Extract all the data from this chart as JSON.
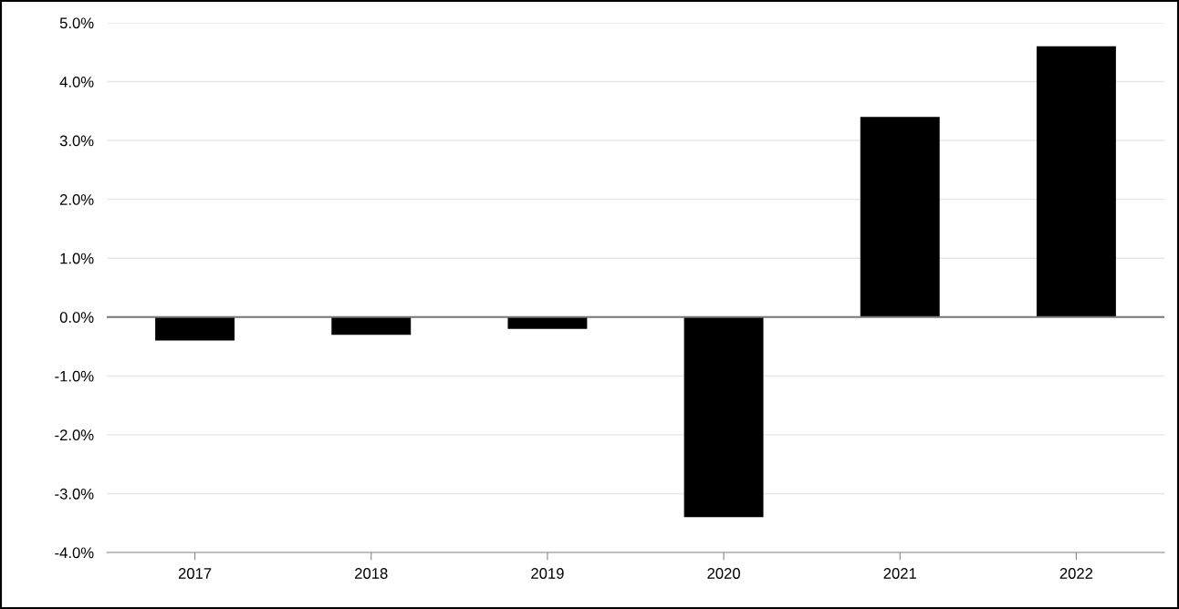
{
  "chart_data": {
    "type": "bar",
    "categories": [
      "2017",
      "2018",
      "2019",
      "2020",
      "2021",
      "2022"
    ],
    "values": [
      -0.4,
      -0.3,
      -0.2,
      -3.4,
      3.4,
      4.6
    ],
    "color": "#000000",
    "ylim": [
      -4,
      5
    ],
    "yticks": [
      {
        "value": -4,
        "label": "-4.0%"
      },
      {
        "value": -3,
        "label": "-3.0%"
      },
      {
        "value": -2,
        "label": "-2.0%"
      },
      {
        "value": -1,
        "label": "-1.0%"
      },
      {
        "value": 0,
        "label": "0.0%"
      },
      {
        "value": 1,
        "label": "1.0%"
      },
      {
        "value": 2,
        "label": "2.0%"
      },
      {
        "value": 3,
        "label": "3.0%"
      },
      {
        "value": 4,
        "label": "4.0%"
      },
      {
        "value": 5,
        "label": "5.0%"
      }
    ],
    "grid": "y"
  }
}
